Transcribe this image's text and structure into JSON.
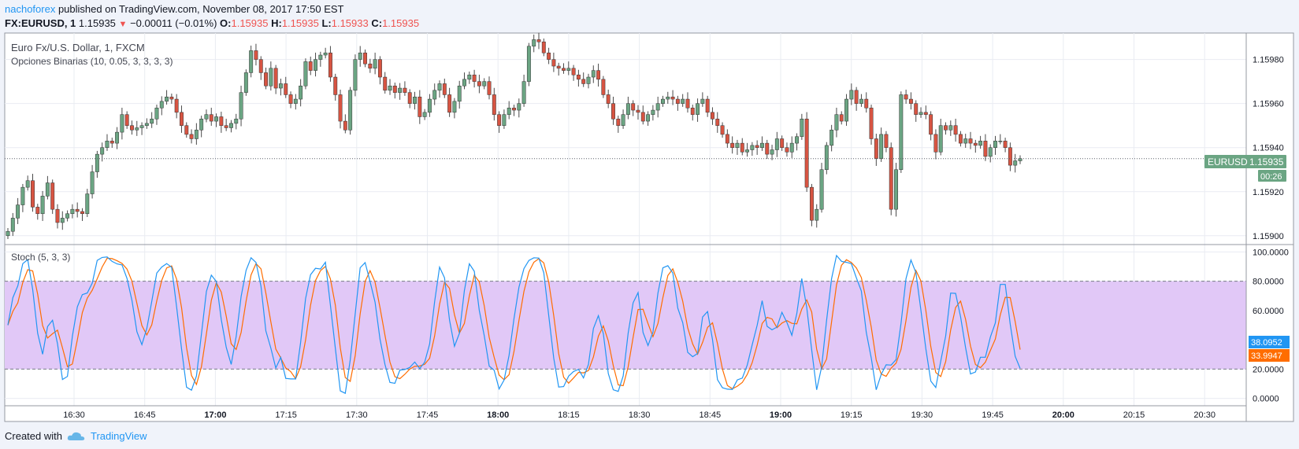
{
  "header": {
    "author": "nachoforex",
    "published": " published on TradingView.com, November 08, 2017 17:50 EST",
    "symbol": "FX:EURUSD, 1",
    "last": "1.15935",
    "down_glyph": "▼",
    "change": "−0.00011 (−0.01%)",
    "o_label": "O:",
    "o": "1.15935",
    "h_label": "H:",
    "h": "1.15935",
    "l_label": "L:",
    "l": "1.15933",
    "c_label": "C:",
    "c": "1.15935"
  },
  "main_pane": {
    "title": "Euro Fx/U.S. Dollar, 1, FXCM",
    "indicator": "Opciones Binarias (10, 0.05, 3, 3, 3, 3)"
  },
  "stoch_pane": {
    "title": "Stoch (5, 3, 3)"
  },
  "price_badge": {
    "symbol": "EURUSD",
    "value": "1.15935",
    "countdown": "00:26"
  },
  "stoch_badges": {
    "k": "38.0952",
    "d": "33.9947"
  },
  "footer": {
    "created_with": "Created with",
    "brand": "TradingView"
  },
  "colors": {
    "up": "#6ba583",
    "down": "#d75442",
    "k": "#2196f3",
    "d": "#ff6d00",
    "band": "#e1c8f7",
    "grid": "#e9ecf2"
  },
  "chart_data": [
    {
      "type": "candlestick",
      "title": "Euro Fx/U.S. Dollar, 1, FXCM",
      "x_ticks": [
        "16:30",
        "16:45",
        "17:00",
        "17:15",
        "17:30",
        "17:45",
        "18:00",
        "18:15",
        "18:30",
        "18:45",
        "19:00",
        "19:15",
        "19:30",
        "19:45",
        "20:00",
        "20:15",
        "20:30"
      ],
      "y_ticks": [
        "1.15900",
        "1.15920",
        "1.15940",
        "1.15960",
        "1.15980"
      ],
      "ylim": [
        1.15896,
        1.15992
      ],
      "last_price": 1.15935,
      "close_series": [
        1.15902,
        1.15908,
        1.15914,
        1.15922,
        1.15925,
        1.15913,
        1.1591,
        1.15918,
        1.15924,
        1.15912,
        1.15906,
        1.15908,
        1.1591,
        1.15912,
        1.15911,
        1.1591,
        1.15919,
        1.15929,
        1.15937,
        1.1594,
        1.15943,
        1.15942,
        1.15947,
        1.15955,
        1.1595,
        1.15948,
        1.15949,
        1.1595,
        1.15951,
        1.15953,
        1.15958,
        1.15961,
        1.15963,
        1.15962,
        1.15956,
        1.1595,
        1.15946,
        1.15944,
        1.15948,
        1.15953,
        1.15955,
        1.15952,
        1.15954,
        1.1595,
        1.15949,
        1.15951,
        1.15953,
        1.15965,
        1.15974,
        1.15984,
        1.1598,
        1.15974,
        1.15968,
        1.15976,
        1.15967,
        1.15969,
        1.15964,
        1.1596,
        1.15962,
        1.15968,
        1.15979,
        1.15975,
        1.1598,
        1.15982,
        1.15983,
        1.15972,
        1.15964,
        1.15952,
        1.15948,
        1.15966,
        1.1598,
        1.15983,
        1.15978,
        1.15976,
        1.1598,
        1.15972,
        1.15966,
        1.15968,
        1.15965,
        1.15967,
        1.15965,
        1.1596,
        1.15963,
        1.15954,
        1.15956,
        1.15962,
        1.15966,
        1.15969,
        1.15964,
        1.15956,
        1.15961,
        1.15968,
        1.15971,
        1.15973,
        1.1597,
        1.15968,
        1.1597,
        1.15964,
        1.15955,
        1.1595,
        1.15955,
        1.15958,
        1.15957,
        1.1596,
        1.1597,
        1.15986,
        1.15989,
        1.15988,
        1.15983,
        1.1598,
        1.15977,
        1.15976,
        1.15975,
        1.15976,
        1.15973,
        1.15971,
        1.15969,
        1.15972,
        1.15975,
        1.15971,
        1.15964,
        1.1596,
        1.15953,
        1.1595,
        1.15955,
        1.1596,
        1.15957,
        1.15956,
        1.15952,
        1.15955,
        1.15957,
        1.1596,
        1.15962,
        1.15963,
        1.15962,
        1.1596,
        1.15962,
        1.15958,
        1.15955,
        1.1596,
        1.15962,
        1.15956,
        1.15953,
        1.1595,
        1.15946,
        1.15942,
        1.1594,
        1.15942,
        1.15938,
        1.15939,
        1.15941,
        1.1594,
        1.15942,
        1.15937,
        1.15939,
        1.15944,
        1.1594,
        1.15938,
        1.15942,
        1.15945,
        1.15953,
        1.15922,
        1.15907,
        1.15912,
        1.1593,
        1.15941,
        1.15948,
        1.15955,
        1.15952,
        1.15962,
        1.15966,
        1.1596,
        1.15962,
        1.15958,
        1.15944,
        1.15935,
        1.15946,
        1.1594,
        1.15912,
        1.1593,
        1.15964,
        1.15962,
        1.1596,
        1.15955,
        1.15956,
        1.15955,
        1.15946,
        1.15938,
        1.1595,
        1.15948,
        1.1595,
        1.15946,
        1.15942,
        1.15944,
        1.15942,
        1.15941,
        1.15943,
        1.15936,
        1.1594,
        1.15943,
        1.15943,
        1.1594,
        1.15932,
        1.15934,
        1.15935
      ]
    },
    {
      "type": "line",
      "title": "Stoch (5, 3, 3)",
      "y_ticks": [
        "0.0000",
        "20.0000",
        "40.0000",
        "60.0000",
        "80.0000",
        "100.0000"
      ],
      "ylim": [
        -5,
        105
      ],
      "bands": [
        20,
        80
      ],
      "last_values": {
        "k": 38.0952,
        "d": 33.9947
      }
    }
  ]
}
